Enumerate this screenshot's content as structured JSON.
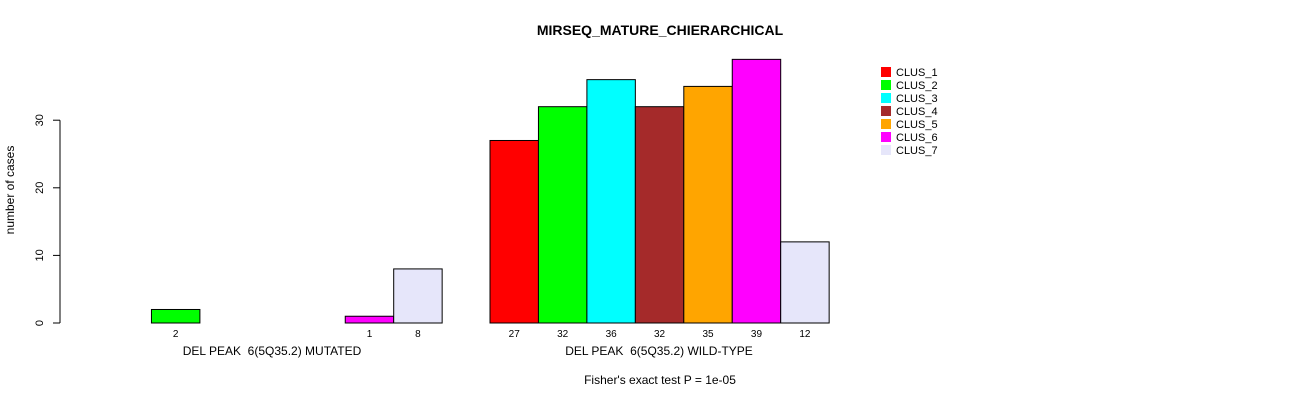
{
  "chart_data": {
    "type": "bar",
    "title": "MIRSEQ_MATURE_CHIERARCHICAL",
    "ylabel": "number of cases",
    "ylim": [
      0,
      39
    ],
    "yticks": [
      0,
      10,
      20,
      30
    ],
    "footnote": "Fisher's exact test P = 1e-05",
    "legend_position": "top-right",
    "groups": [
      "DEL PEAK  6(5Q35.2) MUTATED",
      "DEL PEAK  6(5Q35.2) WILD-TYPE"
    ],
    "series": [
      {
        "name": "CLUS_1",
        "color": "#ff0000",
        "values": [
          0,
          27
        ]
      },
      {
        "name": "CLUS_2",
        "color": "#00ff00",
        "values": [
          2,
          32
        ]
      },
      {
        "name": "CLUS_3",
        "color": "#00ffff",
        "values": [
          0,
          36
        ]
      },
      {
        "name": "CLUS_4",
        "color": "#a52a2a",
        "values": [
          0,
          32
        ]
      },
      {
        "name": "CLUS_5",
        "color": "#ffa500",
        "values": [
          0,
          35
        ]
      },
      {
        "name": "CLUS_6",
        "color": "#ff00ff",
        "values": [
          1,
          39
        ]
      },
      {
        "name": "CLUS_7",
        "color": "#e6e6fa",
        "values": [
          8,
          12
        ]
      }
    ]
  }
}
